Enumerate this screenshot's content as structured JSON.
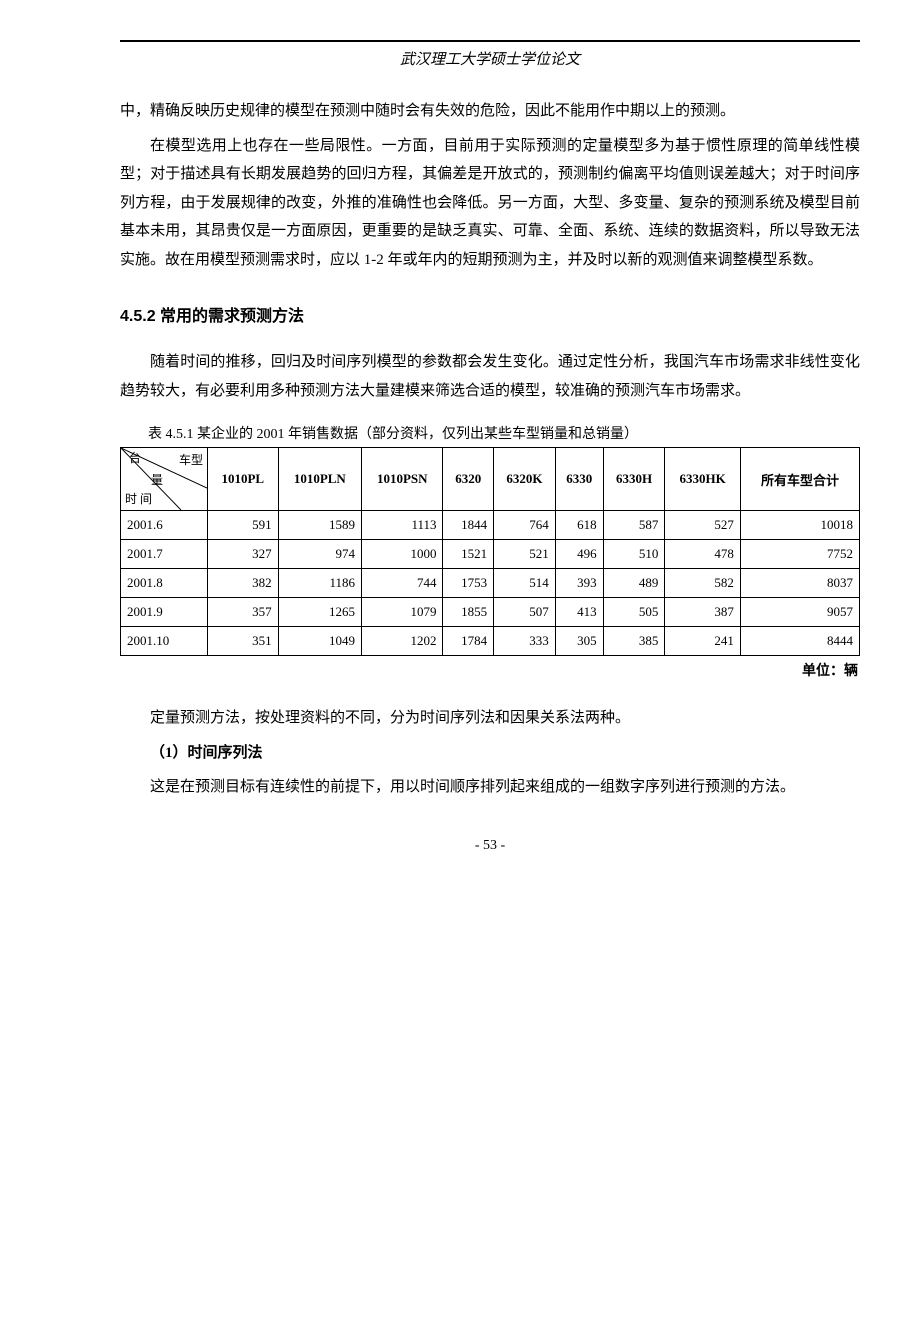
{
  "runningHead": "武汉理工大学硕士学位论文",
  "paragraphs": {
    "p1": "中，精确反映历史规律的模型在预测中随时会有失效的危险，因此不能用作中期以上的预测。",
    "p2": "在模型选用上也存在一些局限性。一方面，目前用于实际预测的定量模型多为基于惯性原理的简单线性模型；对于描述具有长期发展趋势的回归方程，其偏差是开放式的，预测制约偏离平均值则误差越大；对于时间序列方程，由于发展规律的改变，外推的准确性也会降低。另一方面，大型、多变量、复杂的预测系统及模型目前基本未用，其昂贵仅是一方面原因，更重要的是缺乏真实、可靠、全面、系统、连续的数据资料，所以导致无法实施。故在用模型预测需求时，应以 1-2 年或年内的短期预测为主，并及时以新的观测值来调整模型系数。"
  },
  "sectionHead": "4.5.2 常用的需求预测方法",
  "paragraphs2": {
    "p3": "随着时间的推移，回归及时间序列模型的参数都会发生变化。通过定性分析，我国汽车市场需求非线性变化趋势较大，有必要利用多种预测方法大量建模来筛选合适的模型，较准确的预测汽车市场需求。"
  },
  "table": {
    "caption": "表 4.5.1 某企业的 2001 年销售数据（部分资料，仅列出某些车型销量和总销量）",
    "diagLabels": {
      "top": "台",
      "mid": "车型",
      "mid2": "量",
      "bottom": "时 间"
    },
    "columns": [
      "1010PL",
      "1010PLN",
      "1010PSN",
      "6320",
      "6320K",
      "6330",
      "6330H",
      "6330HK",
      "所有车型合计"
    ],
    "rows": [
      {
        "label": "2001.6",
        "cells": [
          "591",
          "1589",
          "1113",
          "1844",
          "764",
          "618",
          "587",
          "527",
          "10018"
        ]
      },
      {
        "label": "2001.7",
        "cells": [
          "327",
          "974",
          "1000",
          "1521",
          "521",
          "496",
          "510",
          "478",
          "7752"
        ]
      },
      {
        "label": "2001.8",
        "cells": [
          "382",
          "1186",
          "744",
          "1753",
          "514",
          "393",
          "489",
          "582",
          "8037"
        ]
      },
      {
        "label": "2001.9",
        "cells": [
          "357",
          "1265",
          "1079",
          "1855",
          "507",
          "413",
          "505",
          "387",
          "9057"
        ]
      },
      {
        "label": "2001.10",
        "cells": [
          "351",
          "1049",
          "1202",
          "1784",
          "333",
          "305",
          "385",
          "241",
          "8444"
        ]
      }
    ],
    "unit": "单位：辆"
  },
  "paragraphs3": {
    "p4": "定量预测方法，按处理资料的不同，分为时间序列法和因果关系法两种。",
    "p5head": "（1）时间序列法",
    "p5": "这是在预测目标有连续性的前提下，用以时间顺序排列起来组成的一组数字序列进行预测的方法。"
  },
  "pageNum": "- 53 -"
}
